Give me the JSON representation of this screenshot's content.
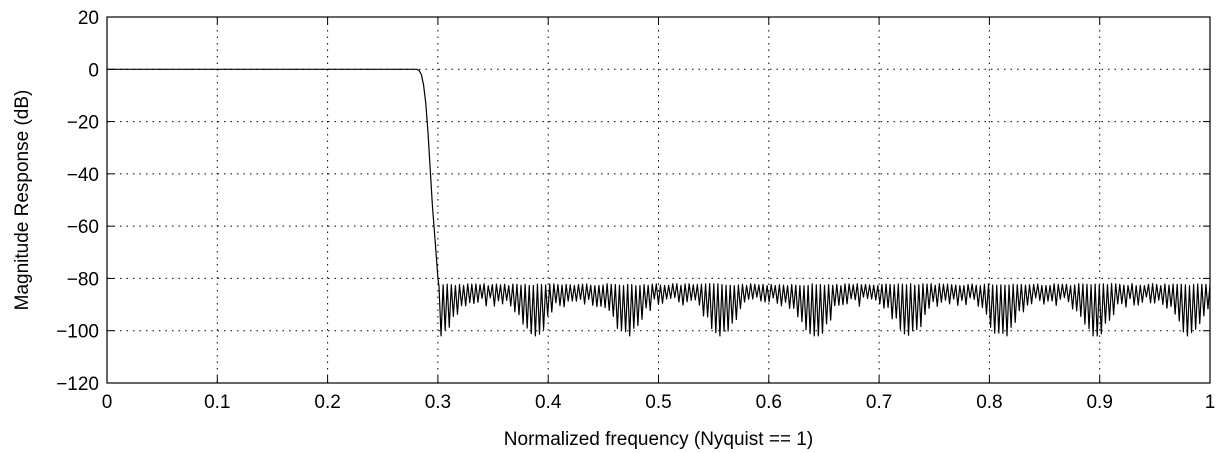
{
  "chart_data": {
    "type": "line",
    "title": "",
    "xlabel": "Normalized frequency (Nyquist == 1)",
    "ylabel": "Magnitude Response (dB)",
    "xlim": [
      0,
      1
    ],
    "ylim": [
      -120,
      20
    ],
    "grid": true,
    "x_ticks": [
      0,
      0.1,
      0.2,
      0.3,
      0.4,
      0.5,
      0.6,
      0.7,
      0.8,
      0.9,
      1
    ],
    "x_tick_labels": [
      "0",
      "0.1",
      "0.2",
      "0.3",
      "0.4",
      "0.5",
      "0.6",
      "0.7",
      "0.8",
      "0.9",
      "1"
    ],
    "y_ticks": [
      20,
      0,
      -20,
      -40,
      -60,
      -80,
      -100,
      -120
    ],
    "y_tick_labels": [
      "20",
      "0",
      "−20",
      "−40",
      "−60",
      "−80",
      "−100",
      "−120"
    ],
    "line_color": "#000000",
    "series": [
      {
        "passband": {
          "x_start": 0,
          "x_end": 0.281,
          "level": 0
        },
        "transition": {
          "x": [
            0.281,
            0.283,
            0.285,
            0.287,
            0.289,
            0.291,
            0.293,
            0.295,
            0.297,
            0.299,
            0.3,
            0.301
          ],
          "y": [
            0,
            -0.5,
            -2,
            -6,
            -13,
            -24,
            -38,
            -52,
            -63,
            -74,
            -80,
            -83
          ]
        },
        "stopband": {
          "x_start": 0.301,
          "x_end": 1.0,
          "lobes": 188,
          "peak_level": -82,
          "null_depth_range": [
            -87,
            -102
          ]
        }
      }
    ]
  }
}
